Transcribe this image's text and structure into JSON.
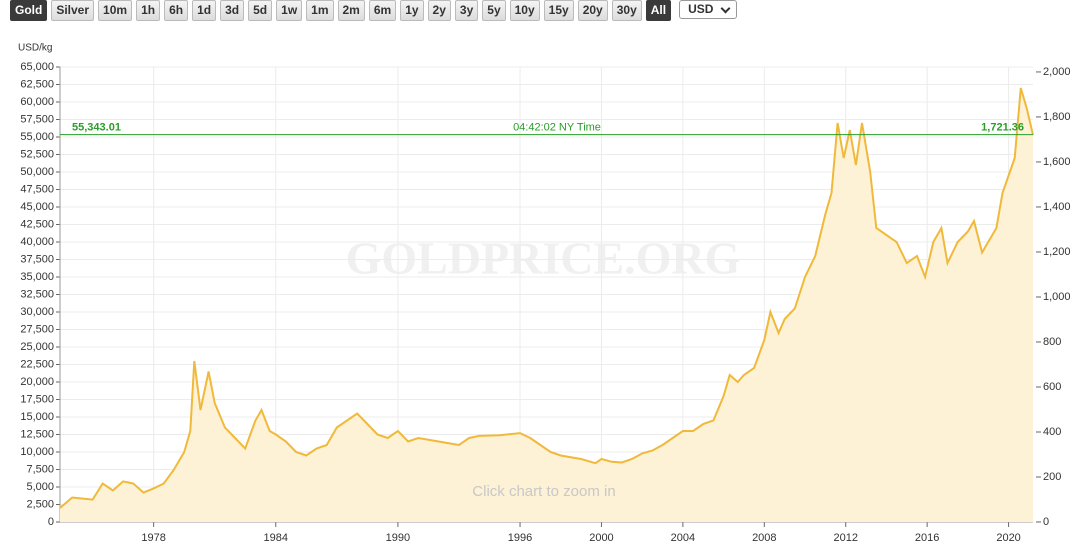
{
  "buttons": [
    {
      "label": "Gold",
      "active": true
    },
    {
      "label": "Silver",
      "active": false
    },
    {
      "label": "10m",
      "active": false
    },
    {
      "label": "1h",
      "active": false
    },
    {
      "label": "6h",
      "active": false
    },
    {
      "label": "1d",
      "active": false
    },
    {
      "label": "3d",
      "active": false
    },
    {
      "label": "5d",
      "active": false
    },
    {
      "label": "1w",
      "active": false
    },
    {
      "label": "1m",
      "active": false
    },
    {
      "label": "2m",
      "active": false
    },
    {
      "label": "6m",
      "active": false
    },
    {
      "label": "1y",
      "active": false
    },
    {
      "label": "2y",
      "active": false
    },
    {
      "label": "3y",
      "active": false
    },
    {
      "label": "5y",
      "active": false
    },
    {
      "label": "10y",
      "active": false
    },
    {
      "label": "15y",
      "active": false
    },
    {
      "label": "20y",
      "active": false
    },
    {
      "label": "30y",
      "active": false
    },
    {
      "label": "All",
      "active": true
    }
  ],
  "currency": "USD",
  "chart_data": {
    "type": "area",
    "y_label": "USD/kg",
    "watermark": "GOLDPRICE.ORG",
    "hint": "Click chart to zoom in",
    "color": "#f0b93a",
    "fill": "#fdf1d6",
    "x": [
      1973.4,
      1974,
      1975,
      1975.5,
      1976,
      1976.5,
      1977,
      1977.5,
      1978,
      1978.5,
      1979,
      1979.5,
      1979.8,
      1980,
      1980.3,
      1980.7,
      1981,
      1981.5,
      1982,
      1982.5,
      1983,
      1983.3,
      1983.7,
      1984,
      1984.5,
      1985,
      1985.5,
      1986,
      1986.5,
      1987,
      1987.5,
      1988,
      1988.5,
      1989,
      1989.5,
      1990,
      1990.5,
      1991,
      1992,
      1993,
      1993.5,
      1994,
      1995,
      1996,
      1996.5,
      1997,
      1997.5,
      1998,
      1999,
      1999.7,
      2000,
      2000.5,
      2001,
      2001.5,
      2002,
      2002.5,
      2003,
      2003.5,
      2004,
      2004.5,
      2005,
      2005.5,
      2006,
      2006.3,
      2006.7,
      2007,
      2007.5,
      2008,
      2008.3,
      2008.7,
      2009,
      2009.5,
      2010,
      2010.5,
      2011,
      2011.3,
      2011.6,
      2011.9,
      2012.2,
      2012.5,
      2012.8,
      2013.2,
      2013.5,
      2014,
      2014.5,
      2015,
      2015.5,
      2015.9,
      2016.3,
      2016.7,
      2017,
      2017.5,
      2018,
      2018.3,
      2018.7,
      2019,
      2019.4,
      2019.7,
      2020,
      2020.3,
      2020.6,
      2020.9,
      2021.2
    ],
    "series": [
      {
        "name": "Gold",
        "values": [
          2000,
          3500,
          3200,
          5500,
          4500,
          5800,
          5500,
          4200,
          4800,
          5500,
          7500,
          10000,
          13000,
          23000,
          16000,
          21500,
          17000,
          13500,
          12000,
          10500,
          14500,
          16000,
          13000,
          12500,
          11500,
          10000,
          9500,
          10500,
          11000,
          13500,
          14500,
          15500,
          14000,
          12500,
          12000,
          13000,
          11500,
          12000,
          11500,
          11000,
          12000,
          12300,
          12400,
          12700,
          12000,
          11000,
          10000,
          9500,
          9000,
          8400,
          9000,
          8600,
          8500,
          9000,
          9800,
          10200,
          11000,
          12000,
          13000,
          13000,
          14000,
          14500,
          18000,
          21000,
          20000,
          21000,
          22000,
          26000,
          30000,
          27000,
          29000,
          30500,
          35000,
          38000,
          44000,
          47000,
          57000,
          52000,
          56000,
          51000,
          57000,
          50000,
          42000,
          41000,
          40000,
          37000,
          38000,
          35000,
          40000,
          42000,
          37000,
          40000,
          41500,
          43000,
          38500,
          40000,
          42000,
          47000,
          49500,
          52000,
          62000,
          59000,
          55300
        ]
      }
    ],
    "xlim": [
      1973.4,
      2021.2
    ],
    "xticks": [
      1978,
      1984,
      1990,
      1996,
      2000,
      2004,
      2008,
      2012,
      2016,
      2020
    ],
    "ylim": [
      0,
      65000
    ],
    "yticks": [
      0,
      {
        "value": 2500,
        "label": "2,500"
      },
      {
        "value": 5000,
        "label": "5,000"
      },
      {
        "value": 7500,
        "label": "7,500"
      },
      {
        "value": 10000,
        "label": "10,000"
      },
      {
        "value": 12500,
        "label": "12,500"
      },
      {
        "value": 15000,
        "label": "15,000"
      },
      {
        "value": 17500,
        "label": "17,500"
      },
      {
        "value": 20000,
        "label": "20,000"
      },
      {
        "value": 22500,
        "label": "22,500"
      },
      {
        "value": 25000,
        "label": "25,000"
      },
      {
        "value": 27500,
        "label": "27,500"
      },
      {
        "value": 30000,
        "label": "30,000"
      },
      {
        "value": 32500,
        "label": "32,500"
      },
      {
        "value": 35000,
        "label": "35,000"
      },
      {
        "value": 37500,
        "label": "37,500"
      },
      {
        "value": 40000,
        "label": "40,000"
      },
      {
        "value": 42500,
        "label": "42,500"
      },
      {
        "value": 45000,
        "label": "45,000"
      },
      {
        "value": 47500,
        "label": "47,500"
      },
      {
        "value": 50000,
        "label": "50,000"
      },
      {
        "value": 52500,
        "label": "52,500"
      },
      {
        "value": 55000,
        "label": "55,000"
      },
      {
        "value": 57500,
        "label": "57,500"
      },
      {
        "value": 60000,
        "label": "60,000"
      },
      {
        "value": 62500,
        "label": "62,500"
      },
      {
        "value": 65000,
        "label": "65,000"
      }
    ],
    "y2lim": [
      0,
      2022
    ],
    "y2ticks": [
      0,
      200,
      400,
      600,
      800,
      {
        "value": 1000,
        "label": "1,000"
      },
      {
        "value": 1200,
        "label": "1,200"
      },
      {
        "value": 1400,
        "label": "1,400"
      },
      {
        "value": 1600,
        "label": "1,600"
      },
      {
        "value": 1800,
        "label": "1,800"
      },
      {
        "value": 2000,
        "label": "2,000"
      }
    ],
    "grid": true,
    "current": {
      "value": 55343.01,
      "label": "55,343.01",
      "value_oz": 1721.36,
      "label_oz": "1,721.36",
      "time": "04:42:02 NY Time",
      "color": "#2a9d2a"
    }
  }
}
